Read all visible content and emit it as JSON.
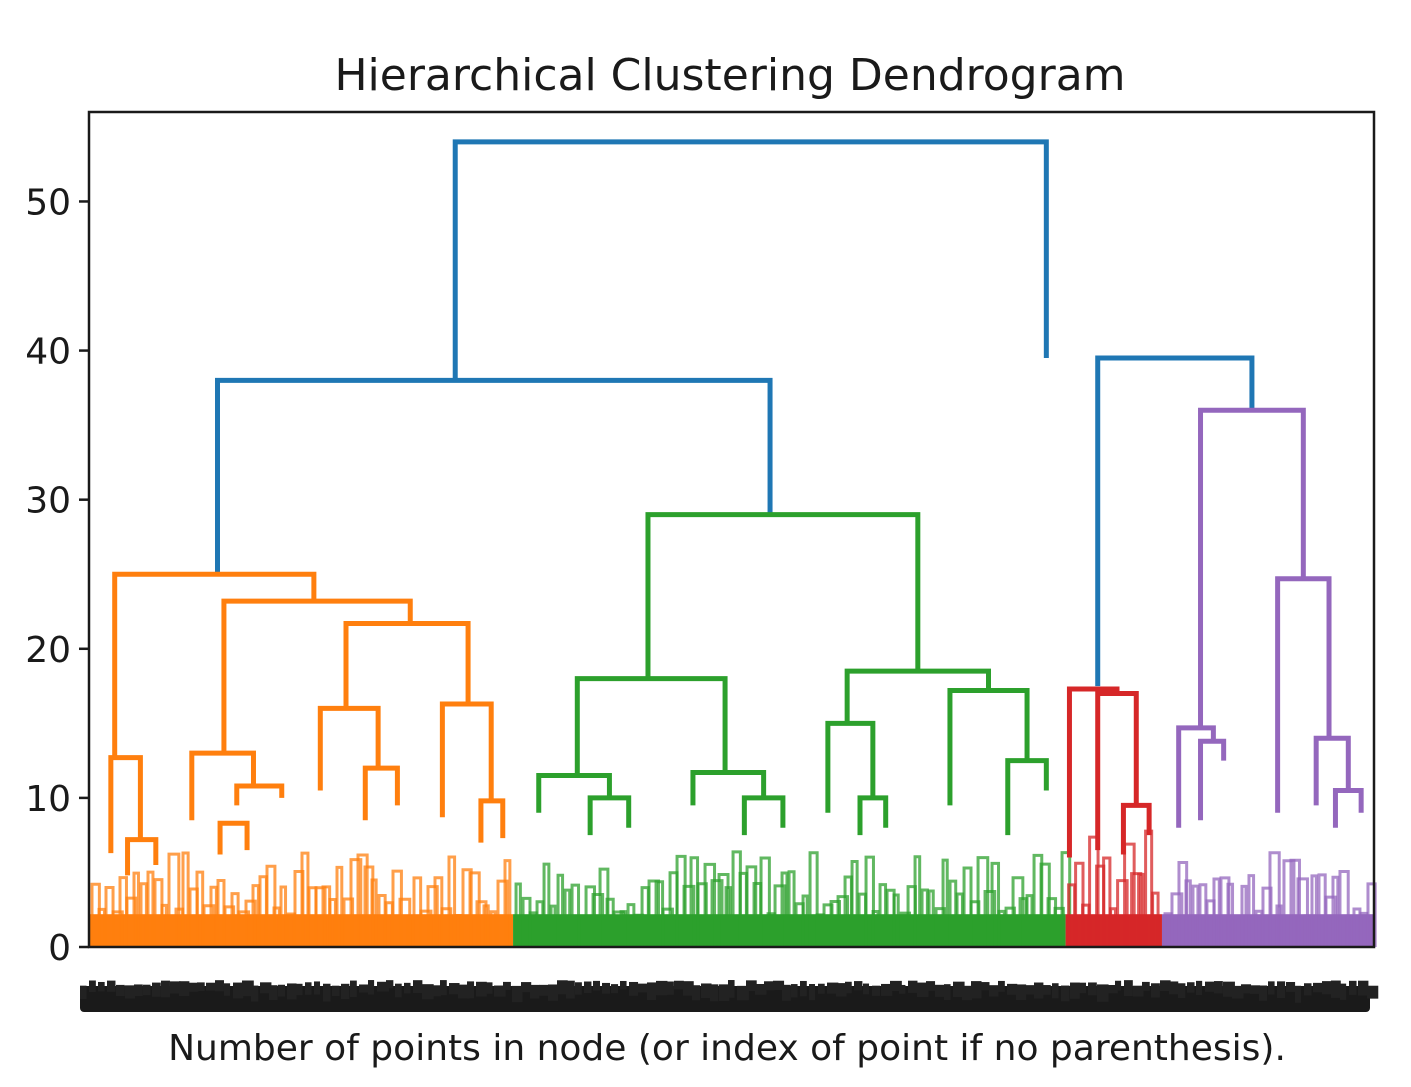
{
  "chart_data": {
    "type": "dendrogram",
    "title": "Hierarchical Clustering Dendrogram",
    "xlabel": "Number of points in node (or index of point if no parenthesis).",
    "ylabel": "",
    "ylim": [
      0,
      56
    ],
    "yticks": [
      0,
      10,
      20,
      30,
      40,
      50
    ],
    "grid": false,
    "colors": {
      "above_threshold": "#1f77b4",
      "cluster_1": "#ff7f0e",
      "cluster_2": "#2ca02c",
      "cluster_3": "#d62728",
      "cluster_4": "#9467bd"
    },
    "links": [
      {
        "color": "above_threshold",
        "x": [
          28.5,
          28.5,
          74.5,
          74.5
        ],
        "y": [
          38,
          54,
          54,
          39.5
        ]
      },
      {
        "color": "above_threshold",
        "x": [
          10,
          10,
          53,
          53
        ],
        "y": [
          25,
          38,
          38,
          29
        ]
      },
      {
        "color": "above_threshold",
        "x": [
          78.5,
          78.5,
          90.5,
          90.5
        ],
        "y": [
          17.5,
          39.5,
          39.5,
          36
        ]
      },
      {
        "color": "cluster_1",
        "x": [
          2,
          2,
          17.5,
          17.5
        ],
        "y": [
          12.7,
          25,
          25,
          23.2
        ]
      },
      {
        "color": "cluster_1",
        "x": [
          1.7,
          1.7,
          4,
          4
        ],
        "y": [
          6.3,
          12.7,
          12.7,
          7.2
        ]
      },
      {
        "color": "cluster_1",
        "x": [
          3,
          3,
          5.2,
          5.2
        ],
        "y": [
          4.8,
          7.2,
          7.2,
          5.5
        ]
      },
      {
        "color": "cluster_1",
        "x": [
          10.5,
          10.5,
          25,
          25
        ],
        "y": [
          13,
          23.2,
          23.2,
          21.7
        ]
      },
      {
        "color": "cluster_1",
        "x": [
          8,
          8,
          12.8,
          12.8
        ],
        "y": [
          8.5,
          13,
          13,
          10.8
        ]
      },
      {
        "color": "cluster_1",
        "x": [
          11.5,
          11.5,
          15,
          15
        ],
        "y": [
          9.5,
          10.8,
          10.8,
          10
        ]
      },
      {
        "color": "cluster_1",
        "x": [
          10.2,
          10.2,
          12.3,
          12.3
        ],
        "y": [
          6.2,
          8.3,
          8.3,
          6.5
        ]
      },
      {
        "color": "cluster_1",
        "x": [
          20,
          20,
          29.5,
          29.5
        ],
        "y": [
          16,
          21.7,
          21.7,
          16.3
        ]
      },
      {
        "color": "cluster_1",
        "x": [
          18,
          18,
          22.5,
          22.5
        ],
        "y": [
          10.5,
          16,
          16,
          12
        ]
      },
      {
        "color": "cluster_1",
        "x": [
          21.5,
          21.5,
          24,
          24
        ],
        "y": [
          8.5,
          12,
          12,
          9.5
        ]
      },
      {
        "color": "cluster_1",
        "x": [
          27.5,
          27.5,
          31.3,
          31.3
        ],
        "y": [
          8.7,
          16.3,
          16.3,
          9.8
        ]
      },
      {
        "color": "cluster_1",
        "x": [
          30.5,
          30.5,
          32.2,
          32.2
        ],
        "y": [
          7,
          9.8,
          9.8,
          7.3
        ]
      },
      {
        "color": "cluster_2",
        "x": [
          43.5,
          43.5,
          64.5,
          64.5
        ],
        "y": [
          18,
          29,
          29,
          18.5
        ]
      },
      {
        "color": "cluster_2",
        "x": [
          38,
          38,
          49.5,
          49.5
        ],
        "y": [
          11.5,
          18,
          18,
          11.7
        ]
      },
      {
        "color": "cluster_2",
        "x": [
          35,
          35,
          40.5,
          40.5
        ],
        "y": [
          9,
          11.5,
          11.5,
          10
        ]
      },
      {
        "color": "cluster_2",
        "x": [
          39,
          39,
          42,
          42
        ],
        "y": [
          7.5,
          10,
          10,
          8
        ]
      },
      {
        "color": "cluster_2",
        "x": [
          47,
          47,
          52.5,
          52.5
        ],
        "y": [
          9.5,
          11.7,
          11.7,
          10
        ]
      },
      {
        "color": "cluster_2",
        "x": [
          51,
          51,
          54,
          54
        ],
        "y": [
          7.5,
          10,
          10,
          8
        ]
      },
      {
        "color": "cluster_2",
        "x": [
          59,
          59,
          70,
          70
        ],
        "y": [
          15,
          18.5,
          18.5,
          17.2
        ]
      },
      {
        "color": "cluster_2",
        "x": [
          57.5,
          57.5,
          61,
          61
        ],
        "y": [
          9,
          15,
          15,
          10
        ]
      },
      {
        "color": "cluster_2",
        "x": [
          60,
          60,
          62,
          62
        ],
        "y": [
          7.5,
          10,
          10,
          8
        ]
      },
      {
        "color": "cluster_2",
        "x": [
          67,
          67,
          73,
          73
        ],
        "y": [
          9.5,
          17.2,
          17.2,
          12.5
        ]
      },
      {
        "color": "cluster_2",
        "x": [
          71.5,
          71.5,
          74.5,
          74.5
        ],
        "y": [
          7.5,
          12.5,
          12.5,
          10.5
        ]
      },
      {
        "color": "cluster_3",
        "x": [
          76.3,
          76.3,
          80,
          80
        ],
        "y": [
          6,
          17.3,
          17.3,
          17
        ]
      },
      {
        "color": "cluster_3",
        "x": [
          78.5,
          78.5,
          81.5,
          81.5
        ],
        "y": [
          6.5,
          17,
          17,
          9.5
        ]
      },
      {
        "color": "cluster_3",
        "x": [
          80.5,
          80.5,
          82.5,
          82.5
        ],
        "y": [
          6.2,
          9.5,
          9.5,
          7.5
        ]
      },
      {
        "color": "cluster_4",
        "x": [
          86.5,
          86.5,
          94.5,
          94.5
        ],
        "y": [
          14.7,
          36,
          36,
          24.7
        ]
      },
      {
        "color": "cluster_4",
        "x": [
          84.8,
          84.8,
          87.5,
          87.5
        ],
        "y": [
          8,
          14.7,
          14.7,
          13.8
        ]
      },
      {
        "color": "cluster_4",
        "x": [
          86.5,
          86.5,
          88.3,
          88.3
        ],
        "y": [
          8.5,
          13.8,
          13.8,
          12.5
        ]
      },
      {
        "color": "cluster_4",
        "x": [
          92.5,
          92.5,
          96.5,
          96.5
        ],
        "y": [
          9,
          24.7,
          24.7,
          14
        ]
      },
      {
        "color": "cluster_4",
        "x": [
          95.5,
          95.5,
          98,
          98
        ],
        "y": [
          9.5,
          14,
          14,
          10.5
        ]
      },
      {
        "color": "cluster_4",
        "x": [
          97,
          97,
          99,
          99
        ],
        "y": [
          8,
          10.5,
          10.5,
          9
        ]
      }
    ],
    "clusters_base": [
      {
        "color": "cluster_1",
        "x_range": [
          0,
          33
        ],
        "height": 6.5
      },
      {
        "color": "cluster_2",
        "x_range": [
          33,
          76
        ],
        "height": 6.5
      },
      {
        "color": "cluster_3",
        "x_range": [
          76,
          83.5
        ],
        "height": 8.5
      },
      {
        "color": "cluster_4",
        "x_range": [
          83.5,
          100
        ],
        "height": 6.5
      }
    ]
  }
}
